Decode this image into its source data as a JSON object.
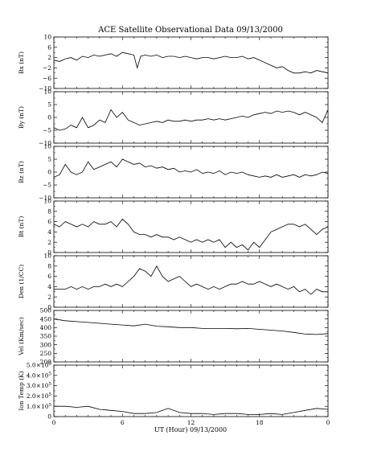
{
  "chart_data": {
    "type": "line",
    "title": "ACE Satellite Observational Data   09/13/2000",
    "xlabel": "UT (Hour)  09/13/2000",
    "x_ticks": [
      "0",
      "6",
      "12",
      "18",
      "0"
    ],
    "xlim": [
      0,
      24
    ],
    "panels": [
      {
        "ylabel": "Bx (nT)",
        "ylim": [
          -10,
          10
        ],
        "y_ticks": [
          10,
          6,
          2,
          -2,
          -6,
          -10
        ],
        "y_tick_labels": [
          "10",
          "6",
          "2",
          "−2",
          "−6",
          "−10"
        ],
        "x": [
          0,
          0.5,
          1,
          1.5,
          2,
          2.5,
          3,
          3.5,
          4,
          4.5,
          5,
          5.5,
          6,
          6.5,
          7,
          7.3,
          7.6,
          8,
          8.5,
          9,
          9.5,
          10,
          10.5,
          11,
          11.5,
          12,
          12.5,
          13,
          13.5,
          14,
          14.5,
          15,
          15.5,
          16,
          16.5,
          17,
          17.5,
          18,
          18.5,
          19,
          19.5,
          20,
          20.5,
          21,
          21.5,
          22,
          22.5,
          23,
          23.5,
          24
        ],
        "values": [
          1,
          0.5,
          1.5,
          2,
          1,
          2.5,
          2,
          3,
          2.5,
          3,
          3.5,
          2.5,
          4,
          3.5,
          3,
          -2,
          2.5,
          3,
          2.5,
          3,
          2,
          2.5,
          2.5,
          2,
          2.5,
          2,
          1.5,
          2,
          2,
          1.5,
          2,
          2.5,
          2,
          2,
          2.5,
          1.5,
          2,
          1,
          0,
          -1,
          -2,
          -1.5,
          -3,
          -4,
          -4,
          -3.5,
          -4,
          -3,
          -3.5,
          -4
        ]
      },
      {
        "ylabel": "By (nT)",
        "ylim": [
          -10,
          10
        ],
        "y_ticks": [
          10,
          5,
          0,
          -5,
          -10
        ],
        "y_tick_labels": [
          "10",
          "5",
          "0",
          "−5",
          "−10"
        ],
        "x": [
          0,
          0.5,
          1,
          1.5,
          2,
          2.5,
          3,
          3.5,
          4,
          4.5,
          5,
          5.5,
          6,
          6.5,
          7,
          7.5,
          8,
          8.5,
          9,
          9.5,
          10,
          10.5,
          11,
          11.5,
          12,
          12.5,
          13,
          13.5,
          14,
          14.5,
          15,
          15.5,
          16,
          16.5,
          17,
          17.5,
          18,
          18.5,
          19,
          19.5,
          20,
          20.5,
          21,
          21.5,
          22,
          22.5,
          23,
          23.5,
          24
        ],
        "values": [
          -4,
          -5,
          -4.5,
          -3,
          -4,
          0,
          -4,
          -3,
          -1,
          -2,
          3,
          0,
          2,
          -1,
          -2,
          -3,
          -2.5,
          -2,
          -1.5,
          -2,
          -1,
          -1.5,
          -1.5,
          -1,
          -1.5,
          -1,
          -1,
          -0.5,
          -1,
          -0.5,
          -1,
          -0.5,
          0,
          0.5,
          0,
          1,
          1.5,
          2,
          1.5,
          2.5,
          2,
          2.5,
          2,
          1,
          2,
          1,
          0,
          -2,
          3
        ]
      },
      {
        "ylabel": "Bz (nT)",
        "ylim": [
          -10,
          10
        ],
        "y_ticks": [
          10,
          5,
          0,
          -5,
          -10
        ],
        "y_tick_labels": [
          "10",
          "5",
          "0",
          "−5",
          "−10"
        ],
        "x": [
          0,
          0.5,
          1,
          1.5,
          2,
          2.5,
          3,
          3.5,
          4,
          4.5,
          5,
          5.5,
          6,
          6.5,
          7,
          7.5,
          8,
          8.5,
          9,
          9.5,
          10,
          10.5,
          11,
          11.5,
          12,
          12.5,
          13,
          13.5,
          14,
          14.5,
          15,
          15.5,
          16,
          16.5,
          17,
          17.5,
          18,
          18.5,
          19,
          19.5,
          20,
          20.5,
          21,
          21.5,
          22,
          22.5,
          23,
          23.5,
          24
        ],
        "values": [
          -2,
          -1,
          3,
          0,
          -1,
          0,
          4,
          1,
          2,
          3,
          4,
          2,
          5,
          4,
          3,
          3.5,
          2,
          2.5,
          1.5,
          2,
          1,
          1.5,
          0,
          0.5,
          0,
          1,
          -0.5,
          0,
          -0.5,
          0.5,
          -1,
          0,
          -0.5,
          0,
          -1,
          -1.5,
          -2,
          -1.5,
          -2,
          -1,
          -2,
          -1.5,
          -1,
          -2,
          -1,
          -1.5,
          -1,
          0,
          -0.5
        ]
      },
      {
        "ylabel": "Bt (nT)",
        "ylim": [
          0,
          10
        ],
        "y_ticks": [
          10,
          8,
          6,
          4,
          2,
          0
        ],
        "y_tick_labels": [
          "10",
          "8",
          "6",
          "4",
          "2",
          "0"
        ],
        "x": [
          0,
          0.5,
          1,
          1.5,
          2,
          2.5,
          3,
          3.5,
          4,
          4.5,
          5,
          5.5,
          6,
          6.5,
          7,
          7.5,
          8,
          8.5,
          9,
          9.5,
          10,
          10.5,
          11,
          11.5,
          12,
          12.5,
          13,
          13.5,
          14,
          14.5,
          15,
          15.5,
          16,
          16.5,
          17,
          17.5,
          18,
          18.5,
          19,
          19.5,
          20,
          20.5,
          21,
          21.5,
          22,
          22.5,
          23,
          23.5,
          24
        ],
        "values": [
          5.5,
          5,
          6,
          5.5,
          5,
          5.5,
          5,
          6,
          5.5,
          5.5,
          6,
          5,
          6.5,
          5.5,
          4,
          3.5,
          3.5,
          3,
          3.5,
          3,
          3,
          2.5,
          3,
          2.5,
          2,
          2.5,
          2,
          2.5,
          2,
          2.5,
          1,
          2,
          1,
          1.5,
          0.5,
          2,
          1,
          2.5,
          4,
          4.5,
          5,
          5.5,
          5.5,
          5,
          5.5,
          4.5,
          3.5,
          4.5,
          5
        ]
      },
      {
        "ylabel": "Den (1/CC)",
        "ylim": [
          0,
          10
        ],
        "y_ticks": [
          10,
          8,
          6,
          4,
          2,
          0
        ],
        "y_tick_labels": [
          "10",
          "8",
          "6",
          "4",
          "2",
          "0"
        ],
        "x": [
          0,
          0.5,
          1,
          1.5,
          2,
          2.5,
          3,
          3.5,
          4,
          4.5,
          5,
          5.5,
          6,
          6.5,
          7,
          7.5,
          8,
          8.5,
          9,
          9.5,
          10,
          10.5,
          11,
          11.5,
          12,
          12.5,
          13,
          13.5,
          14,
          14.5,
          15,
          15.5,
          16,
          16.5,
          17,
          17.5,
          18,
          18.5,
          19,
          19.5,
          20,
          20.5,
          21,
          21.5,
          22,
          22.5,
          23,
          23.5,
          24
        ],
        "values": [
          3.5,
          3.5,
          3.5,
          4,
          3.5,
          4,
          3.5,
          4,
          4,
          4.5,
          4,
          4.5,
          4,
          5,
          6,
          7.5,
          7,
          6,
          8,
          6,
          5,
          5.5,
          6,
          5,
          4,
          4.5,
          4,
          3.5,
          4,
          3.5,
          4,
          4.5,
          4.5,
          5,
          4.5,
          4.5,
          5,
          4.5,
          4,
          4.5,
          4,
          3.5,
          4,
          3,
          3.5,
          2.5,
          3.5,
          3,
          3
        ]
      },
      {
        "ylabel": "Vel (Km/sec)",
        "ylim": [
          200,
          500
        ],
        "y_ticks": [
          500,
          450,
          400,
          350,
          300,
          250,
          200
        ],
        "y_tick_labels": [
          "500",
          "450",
          "400",
          "350",
          "300",
          "250",
          "200"
        ],
        "x": [
          0,
          1,
          2,
          3,
          4,
          5,
          6,
          7,
          8,
          9,
          10,
          11,
          12,
          13,
          14,
          15,
          16,
          17,
          18,
          19,
          20,
          21,
          22,
          23,
          24
        ],
        "values": [
          450,
          440,
          435,
          430,
          425,
          420,
          415,
          410,
          420,
          408,
          405,
          400,
          400,
          395,
          395,
          395,
          393,
          395,
          390,
          385,
          380,
          372,
          362,
          360,
          365
        ]
      },
      {
        "ylabel": "Ion Temp (K)",
        "ylim": [
          0,
          5.0
        ],
        "y_ticks": [
          5.0,
          4.0,
          3.0,
          2.0,
          1.0,
          0
        ],
        "y_tick_labels": [
          "5.0×10",
          "4.0×10",
          "3.0×10",
          "2.0×10",
          "1.0×10",
          "0"
        ],
        "y_tick_exponent": "5",
        "x": [
          0,
          1,
          2,
          3,
          4,
          5,
          6,
          7,
          8,
          9,
          10,
          11,
          12,
          13,
          14,
          15,
          16,
          17,
          18,
          19,
          20,
          21,
          22,
          23,
          24
        ],
        "values": [
          1.0,
          1.0,
          0.9,
          1.0,
          0.7,
          0.6,
          0.5,
          0.3,
          0.3,
          0.4,
          0.8,
          0.4,
          0.3,
          0.3,
          0.2,
          0.3,
          0.3,
          0.2,
          0.2,
          0.3,
          0.2,
          0.4,
          0.6,
          0.8,
          0.7
        ]
      }
    ]
  }
}
